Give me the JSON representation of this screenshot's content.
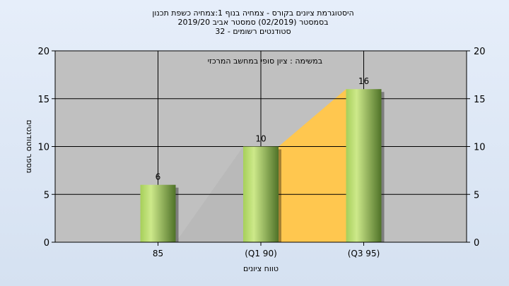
{
  "chart_data": {
    "type": "bar",
    "title_lines": [
      "היסטוגרמת ציונים בקורס - צמחיה בנוף 1:צמחיה כשפת תכנון",
      "בסמסטר  (02/2019)  סמסטר אביב 2019/20",
      "סטודנטים רשומים - 32"
    ],
    "subtitle": "במשימה : ציון סופי במחשב המרכזי",
    "xlabel": "טווח ציונים",
    "ylabel": "מספר סטודנטים",
    "categories": [
      "85",
      "(Q1 90)",
      "(Q3 95)"
    ],
    "values": [
      6,
      10,
      16
    ],
    "value_labels": [
      "6",
      "10",
      "16"
    ],
    "ylim": [
      0,
      20
    ],
    "yticks": [
      "0",
      "5",
      "10",
      "15",
      "20"
    ],
    "grid": true,
    "colors": {
      "plot_bg": "#c0c0c0",
      "bar_light": "#c6e580",
      "bar_dark": "#4f7228",
      "area_gray": "#b9b9b9",
      "area_orange": "#ffc74f"
    }
  }
}
